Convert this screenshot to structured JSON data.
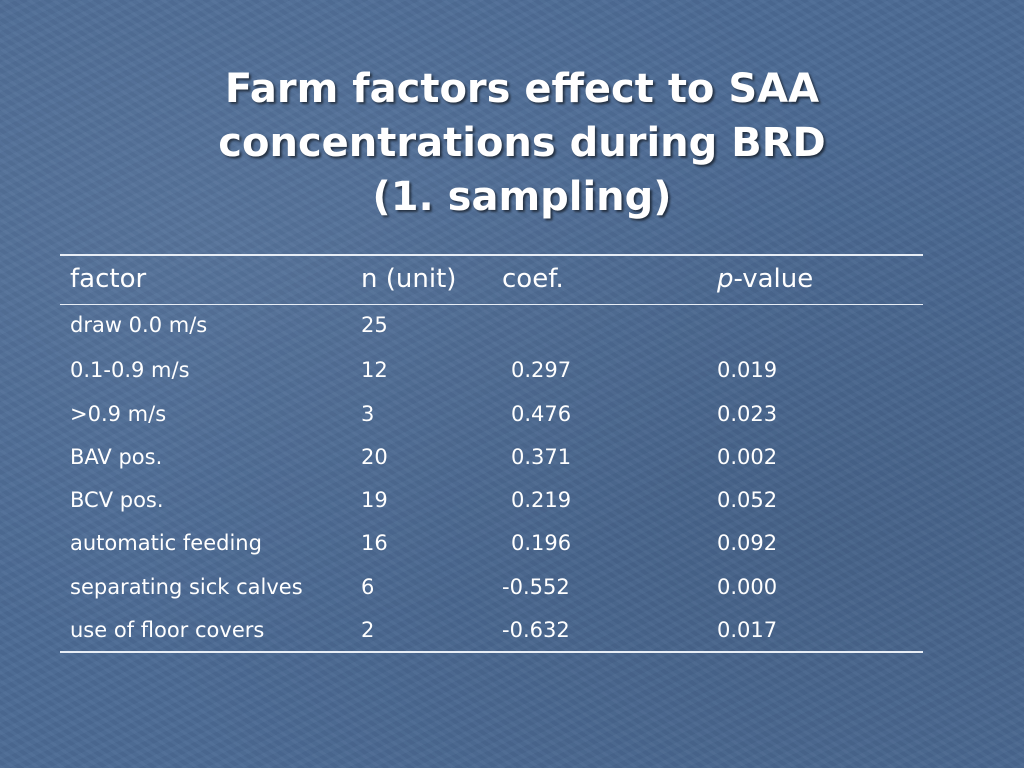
{
  "slide": {
    "title_lines": [
      "Farm factors effect to SAA",
      "concentrations during BRD",
      "(1. sampling)"
    ]
  },
  "table": {
    "headers": {
      "factor": "factor",
      "n_unit": "n (unit)",
      "coef": "coef.",
      "p_italic": "p",
      "p_rest": "-value"
    },
    "rows": [
      {
        "factor": "draw 0.0 m/s",
        "n": "25",
        "coef": "",
        "p": ""
      },
      {
        "factor": "0.1-0.9 m/s",
        "n": "12",
        "coef": "0.297",
        "p": "0.019"
      },
      {
        "factor": ">0.9 m/s",
        "n": "3",
        "coef": "0.476",
        "p": "0.023"
      },
      {
        "factor": "BAV pos.",
        "n": "20",
        "coef": "0.371",
        "p": "0.002"
      },
      {
        "factor": "BCV pos.",
        "n": "19",
        "coef": "0.219",
        "p": "0.052"
      },
      {
        "factor": "automatic feeding",
        "n": "16",
        "coef": "0.196",
        "p": "0.092"
      },
      {
        "factor": "separating sick calves",
        "n": "6",
        "coef": "-0.552",
        "p": "0.000"
      },
      {
        "factor": "use of floor covers",
        "n": "2",
        "coef": "-0.632",
        "p": "0.017"
      }
    ]
  }
}
